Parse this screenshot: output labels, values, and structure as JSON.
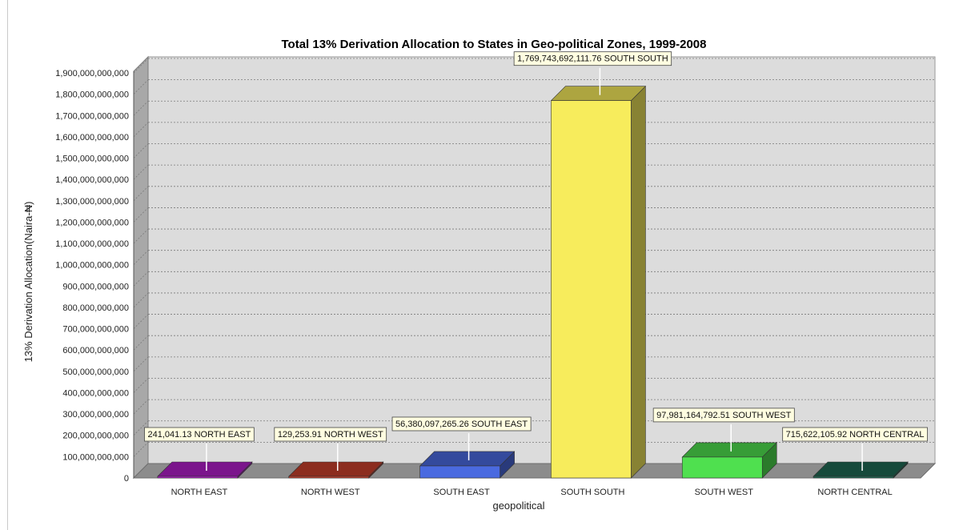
{
  "chart_data": {
    "type": "bar",
    "title": "Total 13% Derivation Allocation to States in Geo-political Zones, 1999-2008",
    "xlabel": "geopolitical",
    "ylabel": "13% Derivation Allocation(Naira-₦)",
    "ylim": [
      0,
      1900000000000
    ],
    "grid": true,
    "y_ticks": [
      "0",
      "100,000,000,000",
      "200,000,000,000",
      "300,000,000,000",
      "400,000,000,000",
      "500,000,000,000",
      "600,000,000,000",
      "700,000,000,000",
      "800,000,000,000",
      "900,000,000,000",
      "1,000,000,000,000",
      "1,100,000,000,000",
      "1,200,000,000,000",
      "1,300,000,000,000",
      "1,400,000,000,000",
      "1,500,000,000,000",
      "1,600,000,000,000",
      "1,700,000,000,000",
      "1,800,000,000,000",
      "1,900,000,000,000"
    ],
    "categories": [
      "NORTH EAST",
      "NORTH WEST",
      "SOUTH EAST",
      "SOUTH SOUTH",
      "SOUTH WEST",
      "NORTH CENTRAL"
    ],
    "values": [
      241041.13,
      129253.91,
      56380097265.26,
      1769743692111.76,
      97981164792.51,
      715622105.92
    ],
    "data_labels": [
      "241,041.13 NORTH EAST",
      "129,253.91 NORTH WEST",
      "56,380,097,265.26 SOUTH EAST",
      "1,769,743,692,111.76 SOUTH SOUTH",
      "97,981,164,792.51 SOUTH WEST",
      "715,622,105.92 NORTH CENTRAL"
    ],
    "colors": [
      "#b01ec8",
      "#c8402c",
      "#4a6ae0",
      "#f7ec5c",
      "#4fe04f",
      "#1f6a55"
    ]
  }
}
